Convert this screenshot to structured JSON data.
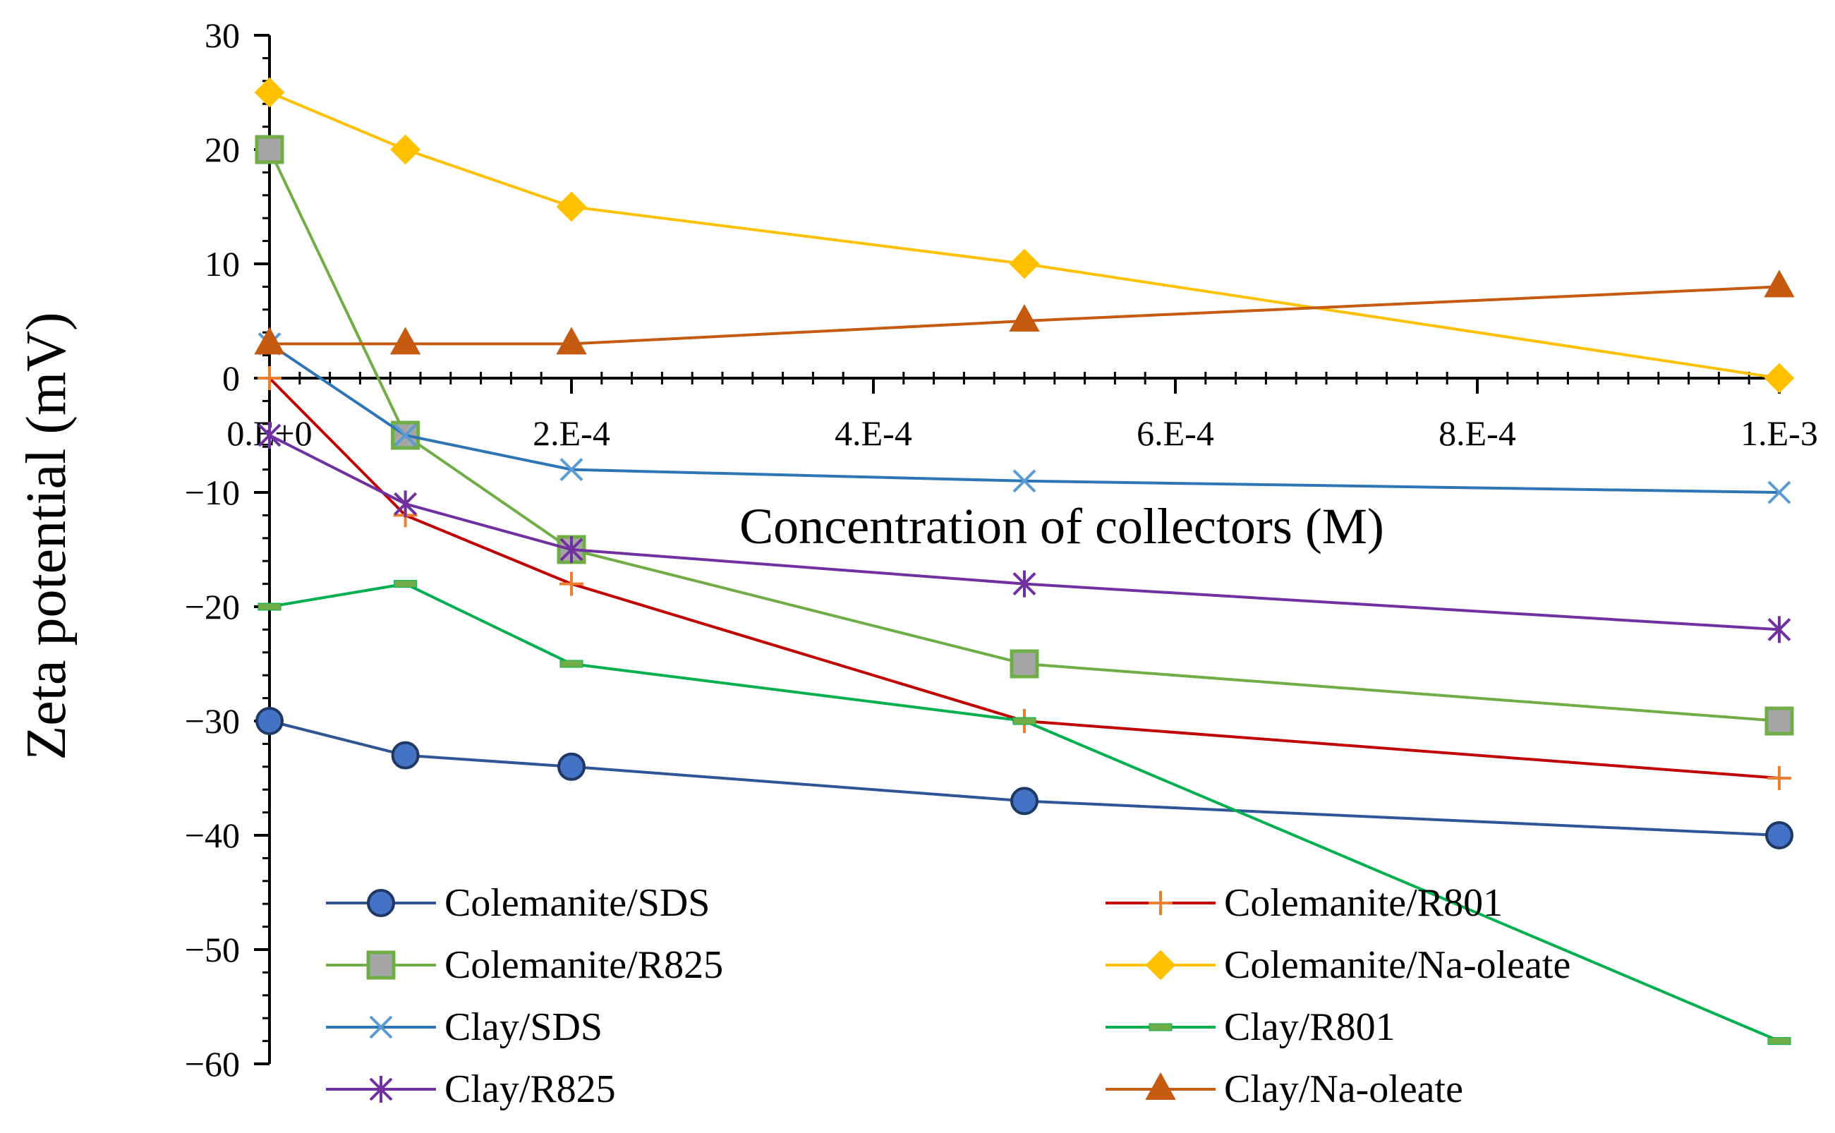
{
  "chart_data": {
    "type": "line",
    "title": "",
    "xlabel": "Concentration of collectors (M)",
    "ylabel": "Zeta potential (mV)",
    "xlim": [
      0,
      0.001
    ],
    "ylim": [
      -60,
      30
    ],
    "x_ticks": [
      {
        "value": 0,
        "label": "0.E+0"
      },
      {
        "value": 0.0002,
        "label": "2.E-4"
      },
      {
        "value": 0.0004,
        "label": "4.E-4"
      },
      {
        "value": 0.0006,
        "label": "6.E-4"
      },
      {
        "value": 0.0008,
        "label": "8.E-4"
      },
      {
        "value": 0.001,
        "label": "1.E-3"
      }
    ],
    "y_ticks": [
      {
        "value": 30,
        "label": "30"
      },
      {
        "value": 20,
        "label": "20"
      },
      {
        "value": 10,
        "label": "10"
      },
      {
        "value": 0,
        "label": "0"
      },
      {
        "value": -10,
        "label": "−10"
      },
      {
        "value": -20,
        "label": "−20"
      },
      {
        "value": -30,
        "label": "−30"
      },
      {
        "value": -40,
        "label": "−40"
      },
      {
        "value": -50,
        "label": "−50"
      },
      {
        "value": -60,
        "label": "−60"
      }
    ],
    "x": [
      0,
      9e-05,
      0.0002,
      0.0005,
      0.001
    ],
    "series": [
      {
        "name": "Colemanite/SDS",
        "color": "#2F5597",
        "fill": "#4472C4",
        "marker": "circle",
        "values": [
          -30,
          -33,
          -34,
          -37,
          -40
        ]
      },
      {
        "name": "Colemanite/R801",
        "color": "#C00000",
        "fill": "#ED7D31",
        "marker": "plus",
        "values": [
          0,
          -12,
          -18,
          -30,
          -35
        ]
      },
      {
        "name": "Colemanite/R825",
        "color": "#70AD47",
        "fill": "#A5A5A5",
        "marker": "square",
        "values": [
          20,
          -5,
          -15,
          -25,
          -30
        ]
      },
      {
        "name": "Colemanite/Na-oleate",
        "color": "#FFC000",
        "fill": "#FFC000",
        "marker": "diamond",
        "values": [
          25,
          20,
          15,
          10,
          0
        ]
      },
      {
        "name": "Clay/SDS",
        "color": "#2E75B6",
        "fill": "#5B9BD5",
        "marker": "x",
        "values": [
          3,
          -5,
          -8,
          -9,
          -10
        ]
      },
      {
        "name": "Clay/R801",
        "color": "#00B050",
        "fill": "#70AD47",
        "marker": "dash",
        "values": [
          -20,
          -18,
          -25,
          -30,
          -58
        ]
      },
      {
        "name": "Clay/R825",
        "color": "#7030A0",
        "fill": "#7030A0",
        "marker": "star",
        "values": [
          -5,
          -11,
          -15,
          -18,
          -22
        ]
      },
      {
        "name": "Clay/Na-oleate",
        "color": "#C55A11",
        "fill": "#C55A11",
        "marker": "triangle",
        "values": [
          3,
          3,
          3,
          5,
          8
        ]
      }
    ],
    "legend": {
      "position": "bottom",
      "columns": 2
    }
  }
}
